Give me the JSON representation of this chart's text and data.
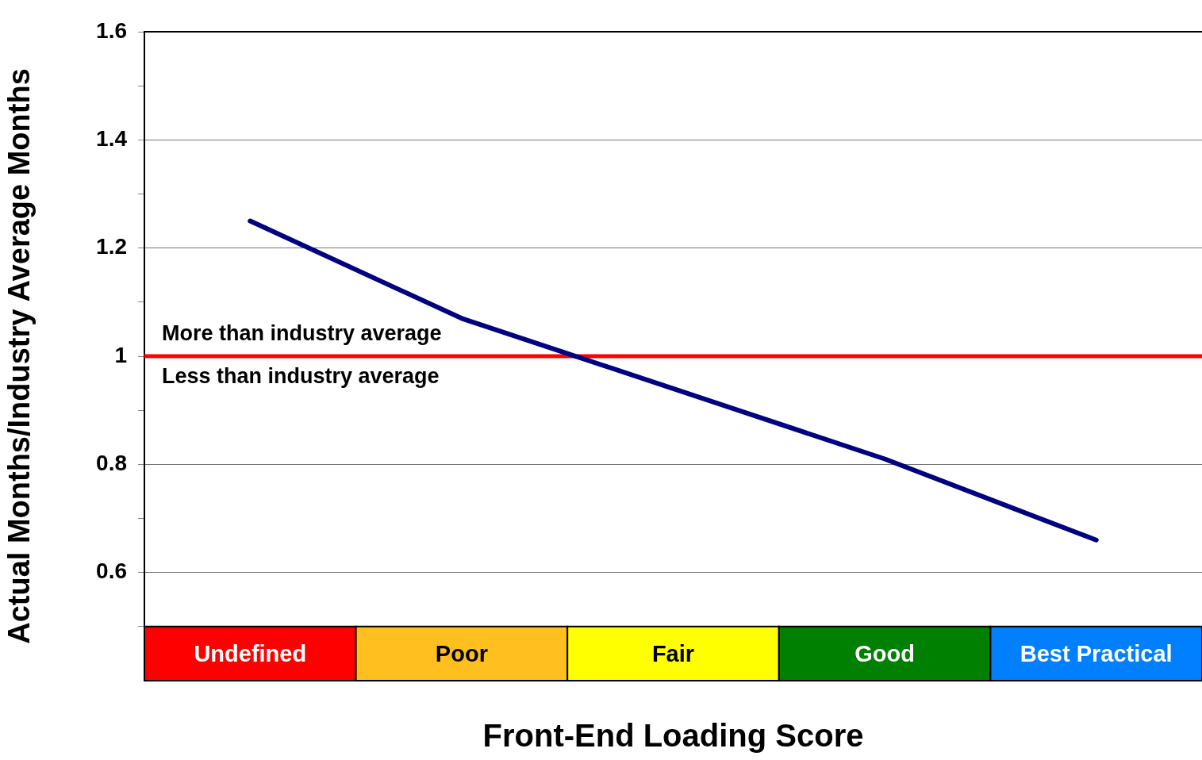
{
  "chart_data": {
    "type": "line",
    "xlabel": "Front-End Loading Score",
    "ylabel": "Actual Months/Industry Average Months",
    "categories": [
      "Undefined",
      "Poor",
      "Fair",
      "Good",
      "Best Practical"
    ],
    "series": [
      {
        "color": "#000080",
        "values": [
          1.25,
          1.07,
          0.94,
          0.81,
          0.66
        ]
      }
    ],
    "ylim": [
      0.4,
      1.6
    ],
    "yticks": [
      {
        "value": 0.5,
        "label": null
      },
      0.6,
      {
        "value": 0.7,
        "label": null
      },
      0.8,
      {
        "value": 0.9,
        "label": null
      },
      1,
      {
        "value": 1.1,
        "label": null
      },
      1.2,
      {
        "value": 1.3,
        "label": null
      },
      1.4,
      {
        "value": 1.5,
        "label": null
      },
      1.6
    ],
    "grid": "y",
    "line_style": "solid",
    "ref_lines": [
      {
        "axis": "y",
        "value": 1,
        "color": "#ff0000"
      }
    ],
    "bands": [
      {
        "axis": "x",
        "from": "Undefined",
        "to": "Undefined",
        "color": "#ff0000"
      },
      {
        "axis": "x",
        "from": "Poor",
        "to": "Poor",
        "color": "#ffbf1f"
      },
      {
        "axis": "x",
        "from": "Fair",
        "to": "Fair",
        "color": "#ffff00"
      },
      {
        "axis": "x",
        "from": "Good",
        "to": "Good",
        "color": "#008000"
      },
      {
        "axis": "x",
        "from": "Best Practical",
        "to": "Best Practical",
        "color": "#0080ff"
      }
    ],
    "annotations": [
      "More than industry average",
      "Less than industry average"
    ]
  }
}
